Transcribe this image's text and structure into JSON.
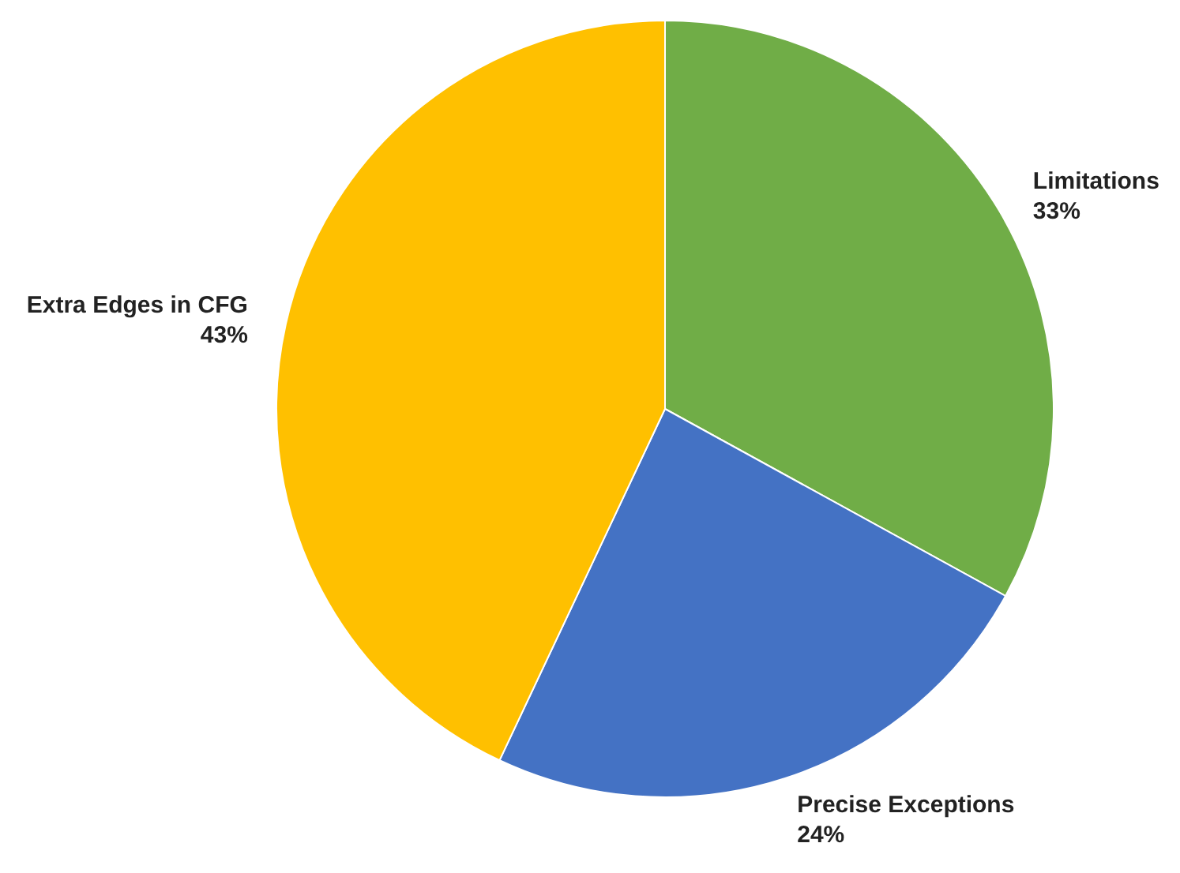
{
  "chart_data": {
    "type": "pie",
    "categories": [
      "Limitations",
      "Precise Exceptions",
      "Extra Edges in CFG"
    ],
    "values": [
      33,
      24,
      43
    ],
    "colors": [
      "#70ad47",
      "#4472c4",
      "#ffc000"
    ],
    "value_labels": [
      "33%",
      "24%",
      "43%"
    ]
  }
}
